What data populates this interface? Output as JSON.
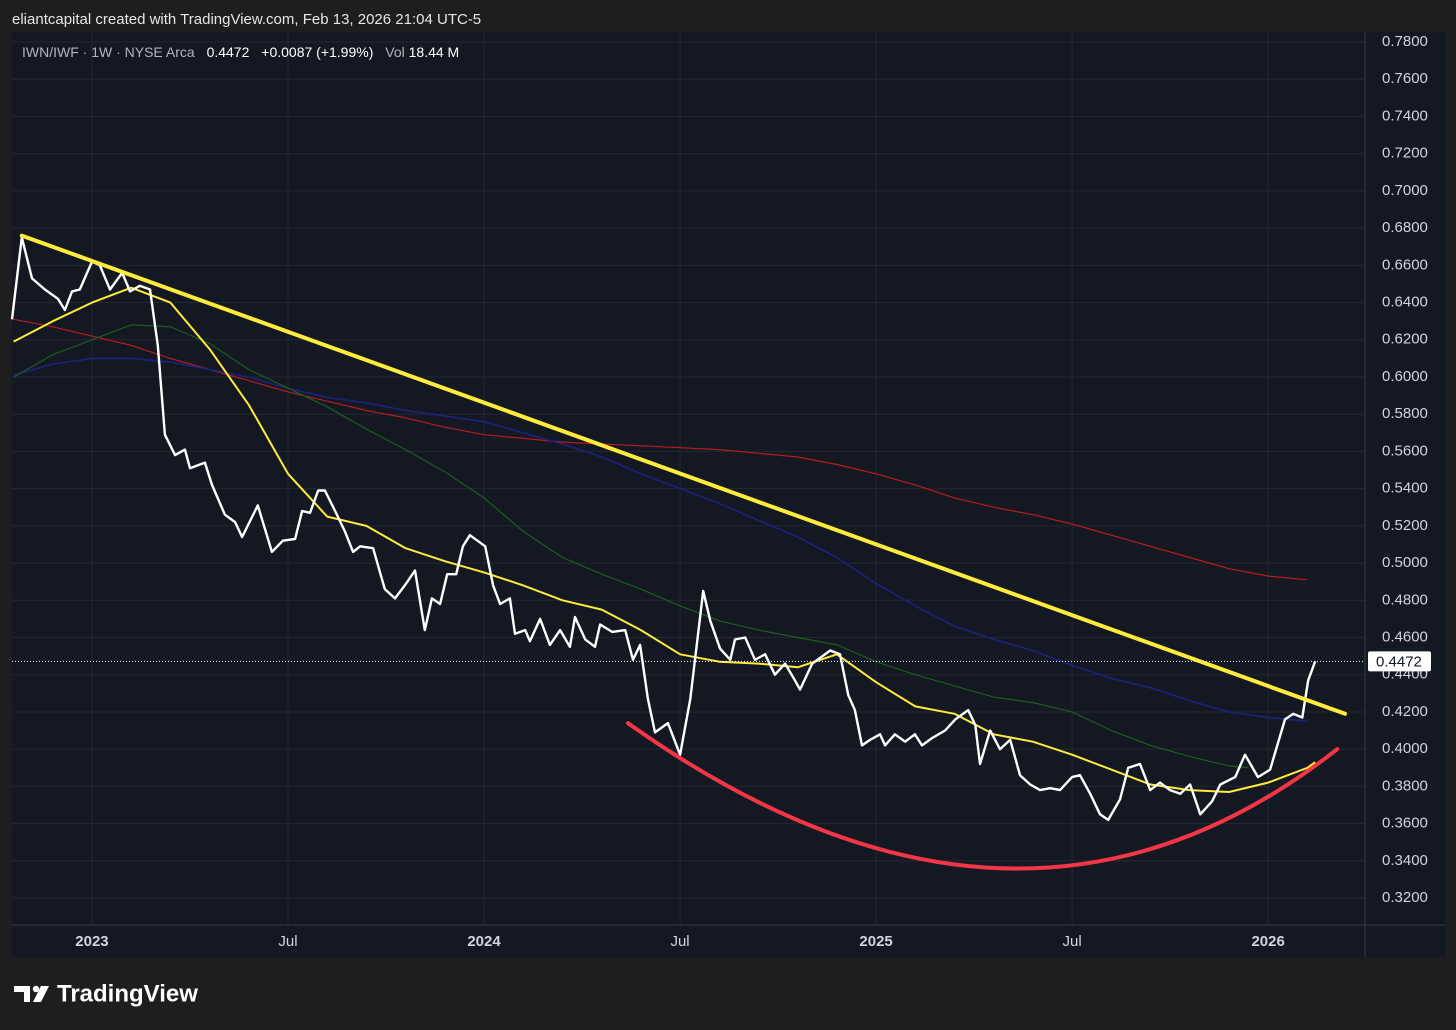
{
  "header": {
    "credit": "eliantcapital created with TradingView.com, Feb 13, 2026 21:04 UTC-5"
  },
  "footer": {
    "brand": "TradingView"
  },
  "chart_data": {
    "type": "line",
    "legend": {
      "symbol": "IWN/IWF · 1W · NYSE Arca",
      "last": "0.4472",
      "change": "+0.0087 (+1.99%)",
      "volume": "Vol",
      "volume_value": "18.44 M"
    },
    "xlim": [
      2022.796,
      2026.247
    ],
    "ylim": [
      0.3055,
      0.7854
    ],
    "grid": true,
    "xticks": [
      {
        "value": 2023,
        "label": "2023"
      },
      {
        "value": 2023.5,
        "label": "Jul"
      },
      {
        "value": 2024,
        "label": "2024"
      },
      {
        "value": 2024.5,
        "label": "Jul"
      },
      {
        "value": 2025,
        "label": "2025"
      },
      {
        "value": 2025.5,
        "label": "Jul"
      },
      {
        "value": 2026,
        "label": "2026"
      }
    ],
    "yticks": [
      {
        "value": 0.32,
        "label": "0.3200"
      },
      {
        "value": 0.34,
        "label": "0.3400"
      },
      {
        "value": 0.36,
        "label": "0.3600"
      },
      {
        "value": 0.38,
        "label": "0.3800"
      },
      {
        "value": 0.4,
        "label": "0.4000"
      },
      {
        "value": 0.42,
        "label": "0.4200"
      },
      {
        "value": 0.44,
        "label": "0.4400"
      },
      {
        "value": 0.46,
        "label": "0.4600"
      },
      {
        "value": 0.48,
        "label": "0.4800"
      },
      {
        "value": 0.5,
        "label": "0.5000"
      },
      {
        "value": 0.52,
        "label": "0.5200"
      },
      {
        "value": 0.54,
        "label": "0.5400"
      },
      {
        "value": 0.56,
        "label": "0.5600"
      },
      {
        "value": 0.58,
        "label": "0.5800"
      },
      {
        "value": 0.6,
        "label": "0.6000"
      },
      {
        "value": 0.62,
        "label": "0.6200"
      },
      {
        "value": 0.64,
        "label": "0.6400"
      },
      {
        "value": 0.66,
        "label": "0.6600"
      },
      {
        "value": 0.68,
        "label": "0.6800"
      },
      {
        "value": 0.7,
        "label": "0.7000"
      },
      {
        "value": 0.72,
        "label": "0.7200"
      },
      {
        "value": 0.74,
        "label": "0.7400"
      },
      {
        "value": 0.76,
        "label": "0.7600"
      },
      {
        "value": 0.78,
        "label": "0.7800"
      }
    ],
    "last_price": {
      "value": 0.4472,
      "label": "0.4472"
    },
    "series": [
      {
        "color": "#b71c1c",
        "width": 1.2,
        "x": [
          2022.8,
          2022.9,
          2023.0,
          2023.1,
          2023.2,
          2023.3,
          2023.4,
          2023.5,
          2023.6,
          2023.7,
          2023.8,
          2023.9,
          2024.0,
          2024.1,
          2024.2,
          2024.3,
          2024.4,
          2024.5,
          2024.6,
          2024.7,
          2024.8,
          2024.9,
          2025.0,
          2025.1,
          2025.2,
          2025.3,
          2025.4,
          2025.5,
          2025.6,
          2025.7,
          2025.8,
          2025.9,
          2026.0,
          2026.1
        ],
        "values": [
          0.631,
          0.627,
          0.622,
          0.617,
          0.61,
          0.604,
          0.598,
          0.592,
          0.587,
          0.582,
          0.578,
          0.573,
          0.569,
          0.567,
          0.565,
          0.564,
          0.563,
          0.562,
          0.561,
          0.559,
          0.557,
          0.553,
          0.548,
          0.542,
          0.535,
          0.53,
          0.526,
          0.521,
          0.515,
          0.509,
          0.503,
          0.497,
          0.493,
          0.491
        ]
      },
      {
        "color": "#1a237e",
        "width": 1.6,
        "x": [
          2022.8,
          2022.9,
          2023.0,
          2023.1,
          2023.2,
          2023.3,
          2023.4,
          2023.5,
          2023.6,
          2023.7,
          2023.8,
          2023.9,
          2024.0,
          2024.1,
          2024.2,
          2024.3,
          2024.4,
          2024.5,
          2024.6,
          2024.7,
          2024.8,
          2024.9,
          2025.0,
          2025.1,
          2025.2,
          2025.3,
          2025.4,
          2025.5,
          2025.6,
          2025.7,
          2025.8,
          2025.9,
          2026.0,
          2026.1
        ],
        "values": [
          0.601,
          0.607,
          0.61,
          0.61,
          0.608,
          0.604,
          0.6,
          0.594,
          0.589,
          0.586,
          0.582,
          0.579,
          0.576,
          0.57,
          0.564,
          0.557,
          0.548,
          0.54,
          0.532,
          0.523,
          0.514,
          0.503,
          0.489,
          0.477,
          0.466,
          0.459,
          0.453,
          0.445,
          0.438,
          0.433,
          0.426,
          0.42,
          0.417,
          0.415
        ]
      },
      {
        "color": "#1b5e20",
        "width": 1.2,
        "x": [
          2022.8,
          2022.9,
          2023.0,
          2023.1,
          2023.2,
          2023.3,
          2023.4,
          2023.5,
          2023.6,
          2023.7,
          2023.8,
          2023.9,
          2024.0,
          2024.1,
          2024.2,
          2024.3,
          2024.4,
          2024.5,
          2024.6,
          2024.7,
          2024.8,
          2024.9,
          2025.0,
          2025.1,
          2025.2,
          2025.3,
          2025.4,
          2025.5,
          2025.6,
          2025.7,
          2025.8,
          2025.9,
          2025.95
        ],
        "values": [
          0.6,
          0.612,
          0.62,
          0.628,
          0.627,
          0.618,
          0.604,
          0.594,
          0.584,
          0.572,
          0.561,
          0.549,
          0.535,
          0.517,
          0.503,
          0.494,
          0.486,
          0.477,
          0.469,
          0.464,
          0.46,
          0.456,
          0.447,
          0.44,
          0.434,
          0.428,
          0.425,
          0.42,
          0.41,
          0.402,
          0.396,
          0.391,
          0.39
        ]
      },
      {
        "color": "#ffeb3b",
        "width": 2,
        "x": [
          2022.8,
          2022.9,
          2023.0,
          2023.1,
          2023.2,
          2023.3,
          2023.4,
          2023.5,
          2023.6,
          2023.7,
          2023.8,
          2023.9,
          2024.0,
          2024.1,
          2024.2,
          2024.3,
          2024.4,
          2024.5,
          2024.6,
          2024.7,
          2024.8,
          2024.9,
          2025.0,
          2025.1,
          2025.2,
          2025.3,
          2025.4,
          2025.5,
          2025.6,
          2025.7,
          2025.8,
          2025.9,
          2026.0,
          2026.1,
          2026.12
        ],
        "values": [
          0.619,
          0.63,
          0.64,
          0.648,
          0.64,
          0.615,
          0.585,
          0.548,
          0.525,
          0.52,
          0.508,
          0.501,
          0.495,
          0.488,
          0.48,
          0.475,
          0.464,
          0.451,
          0.447,
          0.446,
          0.444,
          0.451,
          0.436,
          0.423,
          0.419,
          0.408,
          0.404,
          0.397,
          0.389,
          0.381,
          0.378,
          0.377,
          0.382,
          0.39,
          0.393
        ]
      },
      {
        "color": "#ffffff",
        "width": 2.4,
        "x": [
          2022.796,
          2022.821,
          2022.847,
          2022.88,
          2022.913,
          2022.931,
          2022.949,
          2022.969,
          2023.0,
          2023.02,
          2023.046,
          2023.077,
          2023.097,
          2023.122,
          2023.148,
          2023.168,
          2023.186,
          2023.212,
          2023.237,
          2023.25,
          2023.288,
          2023.306,
          2023.339,
          2023.365,
          2023.383,
          2023.423,
          2023.459,
          2023.487,
          2023.518,
          2023.536,
          2023.556,
          2023.577,
          2023.594,
          2023.62,
          2023.645,
          2023.666,
          2023.684,
          2023.717,
          2023.747,
          2023.773,
          2023.798,
          2023.824,
          2023.849,
          2023.867,
          2023.888,
          2023.906,
          2023.929,
          2023.946,
          2023.964,
          2024.003,
          2024.023,
          2024.041,
          2024.066,
          2024.079,
          2024.105,
          2024.117,
          2024.143,
          2024.168,
          2024.194,
          2024.219,
          2024.232,
          2024.258,
          2024.283,
          2024.296,
          2024.327,
          2024.36,
          2024.38,
          2024.398,
          2024.418,
          2024.436,
          2024.469,
          2024.5,
          2024.526,
          2024.559,
          2024.577,
          2024.602,
          2024.628,
          2024.64,
          2024.666,
          2024.691,
          2024.717,
          2024.742,
          2024.768,
          2024.793,
          2024.806,
          2024.837,
          2024.857,
          2024.883,
          2024.908,
          2024.929,
          2024.946,
          2024.964,
          2024.985,
          2025.01,
          2025.023,
          2025.048,
          2025.074,
          2025.099,
          2025.117,
          2025.143,
          2025.176,
          2025.202,
          2025.235,
          2025.253,
          2025.265,
          2025.291,
          2025.316,
          2025.342,
          2025.367,
          2025.393,
          2025.418,
          2025.444,
          2025.469,
          2025.5,
          2025.52,
          2025.546,
          2025.571,
          2025.592,
          2025.622,
          2025.643,
          2025.673,
          2025.699,
          2025.724,
          2025.75,
          2025.776,
          2025.801,
          2025.827,
          2025.857,
          2025.878,
          2025.916,
          2025.941,
          2025.974,
          2026.005,
          2026.043,
          2026.064,
          2026.087,
          2026.102,
          2026.12
        ],
        "values": [
          0.631,
          0.675,
          0.653,
          0.647,
          0.642,
          0.636,
          0.646,
          0.647,
          0.662,
          0.66,
          0.647,
          0.656,
          0.646,
          0.649,
          0.647,
          0.617,
          0.569,
          0.558,
          0.561,
          0.551,
          0.554,
          0.542,
          0.526,
          0.522,
          0.514,
          0.531,
          0.506,
          0.512,
          0.513,
          0.528,
          0.527,
          0.539,
          0.539,
          0.528,
          0.517,
          0.506,
          0.509,
          0.508,
          0.486,
          0.481,
          0.488,
          0.496,
          0.464,
          0.481,
          0.478,
          0.494,
          0.494,
          0.509,
          0.515,
          0.509,
          0.488,
          0.478,
          0.481,
          0.462,
          0.464,
          0.458,
          0.47,
          0.456,
          0.464,
          0.455,
          0.471,
          0.459,
          0.455,
          0.467,
          0.463,
          0.464,
          0.448,
          0.456,
          0.427,
          0.409,
          0.414,
          0.397,
          0.427,
          0.485,
          0.469,
          0.454,
          0.448,
          0.459,
          0.46,
          0.448,
          0.451,
          0.44,
          0.446,
          0.437,
          0.432,
          0.446,
          0.449,
          0.453,
          0.451,
          0.429,
          0.421,
          0.402,
          0.405,
          0.408,
          0.402,
          0.408,
          0.404,
          0.408,
          0.402,
          0.406,
          0.41,
          0.416,
          0.421,
          0.413,
          0.392,
          0.41,
          0.4,
          0.405,
          0.386,
          0.381,
          0.378,
          0.379,
          0.378,
          0.385,
          0.386,
          0.376,
          0.365,
          0.362,
          0.373,
          0.39,
          0.392,
          0.378,
          0.382,
          0.378,
          0.376,
          0.381,
          0.365,
          0.372,
          0.381,
          0.385,
          0.397,
          0.385,
          0.389,
          0.416,
          0.419,
          0.417,
          0.437,
          0.4472
        ]
      }
    ],
    "drawings": [
      {
        "type": "trendline",
        "color": "#ffeb3b",
        "x": [
          2022.821,
          2026.196
        ],
        "y": [
          0.676,
          0.419
        ]
      },
      {
        "type": "arc",
        "color": "#f23645",
        "x": [
          2024.367,
          2025.316,
          2026.176
        ],
        "y": [
          0.414,
          0.336,
          0.4
        ]
      }
    ]
  }
}
